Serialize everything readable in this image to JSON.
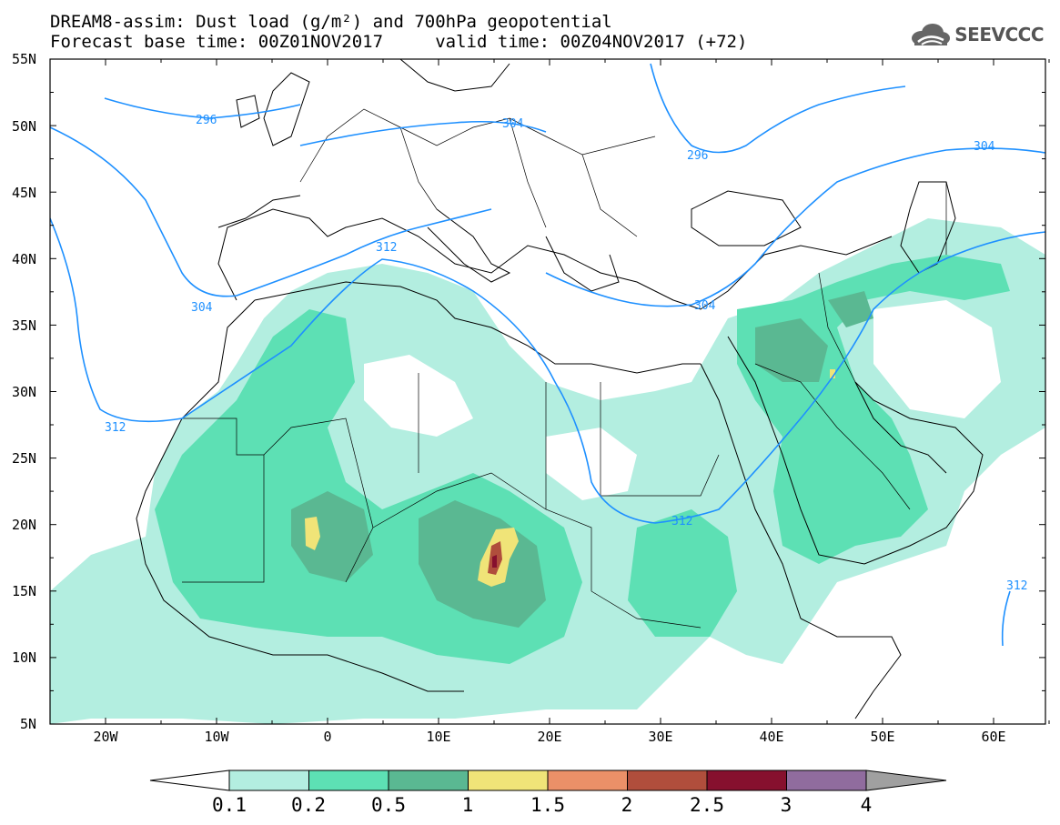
{
  "title_line1": "DREAM8-assim: Dust load (g/m²) and 700hPa geopotential",
  "title_line2": "Forecast base time: 00Z01NOV2017     valid time: 00Z04NOV2017 (+72)",
  "logo_text": "SEEVCCC",
  "lat_labels": [
    "55N",
    "50N",
    "45N",
    "40N",
    "35N",
    "30N",
    "25N",
    "20N",
    "15N",
    "10N",
    "5N"
  ],
  "lon_labels": [
    "20W",
    "10W",
    "0",
    "10E",
    "20E",
    "30E",
    "40E",
    "50E",
    "60E"
  ],
  "contour_labels": [
    "296",
    "304",
    "296",
    "304",
    "312",
    "304",
    "304",
    "312",
    "312",
    "312"
  ],
  "colorbar": {
    "labels": [
      "0.1",
      "0.2",
      "0.5",
      "1",
      "1.5",
      "2",
      "2.5",
      "3",
      "4"
    ],
    "colors": [
      "#b3eee0",
      "#5de0b4",
      "#5ab892",
      "#f0e478",
      "#eb9068",
      "#b04e3c",
      "#86102e",
      "#906c9e"
    ],
    "below_color": "#ffffff",
    "above_color": "#a0a0a0"
  },
  "colors": {
    "contour": "#1e90ff",
    "coast": "#000000"
  }
}
